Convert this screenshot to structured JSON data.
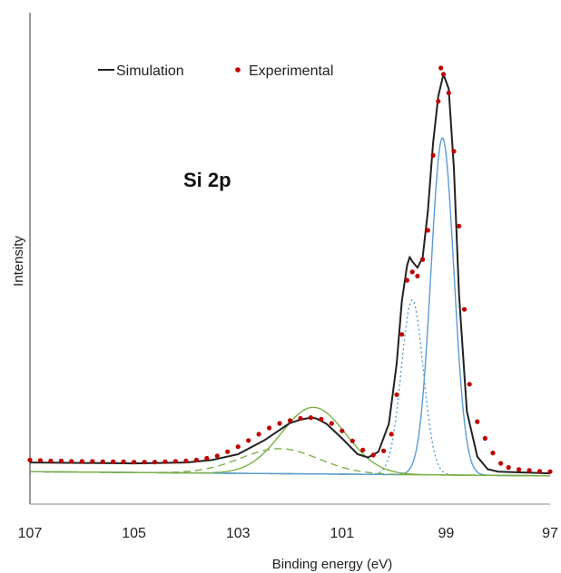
{
  "chart_data": {
    "type": "line",
    "title": "",
    "xlabel": "Binding energy (eV)",
    "ylabel": "Intensity",
    "xlim": [
      107,
      97
    ],
    "ylim": [
      0,
      1
    ],
    "x_ticks": [
      "107",
      "105",
      "103",
      "101",
      "99",
      "97"
    ],
    "y_ticks": [],
    "grid": false,
    "legend_position": "top-left",
    "annotation": "Si 2p",
    "legend": [
      {
        "label": "Simulation",
        "marker": "line",
        "color": "#222222"
      },
      {
        "label": "Experimental",
        "marker": "dot",
        "color": "#c00000"
      }
    ],
    "components": [
      {
        "kind": "baseline",
        "color": "#7ab04a",
        "style": "solid",
        "background": 0.02,
        "baseline_slope": 0.001,
        "center": 99.0,
        "amplitude": 0.0,
        "sigma": 0.5
      },
      {
        "kind": "peak",
        "color": "#5b9bd5",
        "style": "solid",
        "center": 99.07,
        "amplitude": 0.81,
        "sigma": 0.22
      },
      {
        "kind": "peak",
        "color": "#5b9bd5",
        "style": "dotted",
        "center": 99.65,
        "amplitude": 0.42,
        "sigma": 0.21
      },
      {
        "kind": "peak",
        "color": "#7ab04a",
        "style": "solid",
        "center": 101.55,
        "amplitude": 0.16,
        "sigma": 0.62
      },
      {
        "kind": "peak",
        "color": "#7ab04a",
        "style": "dashed",
        "center": 102.2,
        "amplitude": 0.06,
        "sigma": 0.75
      }
    ],
    "series": [
      {
        "name": "Simulation",
        "color": "#222222",
        "x": [
          107,
          106,
          105,
          104.5,
          104,
          103.5,
          103,
          102.5,
          102.2,
          102,
          101.8,
          101.6,
          101.5,
          101.3,
          101,
          100.7,
          100.5,
          100.3,
          100.1,
          99.95,
          99.85,
          99.75,
          99.7,
          99.65,
          99.55,
          99.45,
          99.35,
          99.25,
          99.15,
          99.05,
          98.95,
          98.85,
          98.75,
          98.6,
          98.4,
          98.2,
          98,
          97.5,
          97
        ],
        "y": [
          0.052,
          0.051,
          0.05,
          0.051,
          0.052,
          0.058,
          0.072,
          0.105,
          0.13,
          0.147,
          0.155,
          0.16,
          0.158,
          0.145,
          0.11,
          0.072,
          0.064,
          0.078,
          0.145,
          0.29,
          0.44,
          0.525,
          0.546,
          0.535,
          0.52,
          0.545,
          0.655,
          0.82,
          0.932,
          0.985,
          0.95,
          0.76,
          0.455,
          0.175,
          0.066,
          0.036,
          0.03,
          0.028,
          0.026
        ]
      },
      {
        "name": "Experimental",
        "color": "#c00000",
        "x": [
          107,
          106.8,
          106.6,
          106.4,
          106.2,
          106,
          105.8,
          105.6,
          105.4,
          105.2,
          105,
          104.8,
          104.6,
          104.4,
          104.2,
          104,
          103.8,
          103.6,
          103.4,
          103.2,
          103,
          102.8,
          102.6,
          102.4,
          102.2,
          102,
          101.8,
          101.6,
          101.4,
          101.2,
          101,
          100.8,
          100.6,
          100.4,
          100.2,
          100.05,
          99.95,
          99.85,
          99.75,
          99.65,
          99.55,
          99.45,
          99.35,
          99.25,
          99.15,
          99.1,
          99.05,
          98.95,
          98.85,
          98.75,
          98.65,
          98.55,
          98.4,
          98.25,
          98.1,
          97.95,
          97.8,
          97.6,
          97.4,
          97.2,
          97
        ],
        "y": [
          0.058,
          0.057,
          0.056,
          0.056,
          0.055,
          0.055,
          0.055,
          0.054,
          0.054,
          0.054,
          0.053,
          0.053,
          0.053,
          0.054,
          0.055,
          0.056,
          0.058,
          0.062,
          0.068,
          0.078,
          0.09,
          0.105,
          0.12,
          0.135,
          0.146,
          0.153,
          0.158,
          0.16,
          0.156,
          0.146,
          0.128,
          0.104,
          0.082,
          0.07,
          0.08,
          0.12,
          0.215,
          0.36,
          0.49,
          0.51,
          0.5,
          0.54,
          0.61,
          0.79,
          0.92,
          1.0,
          0.985,
          0.94,
          0.8,
          0.62,
          0.42,
          0.24,
          0.15,
          0.11,
          0.075,
          0.05,
          0.04,
          0.035,
          0.033,
          0.031,
          0.03
        ]
      }
    ]
  }
}
